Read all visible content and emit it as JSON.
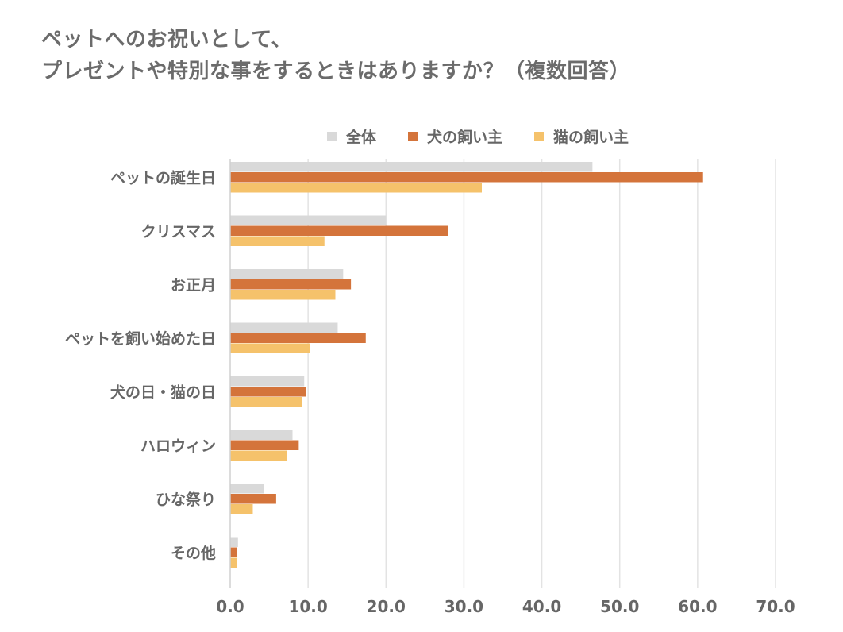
{
  "title_lines": [
    "ペットへのお祝いとして、",
    "プレゼントや特別な事をするときはありますか？（複数回答）"
  ],
  "colors": {
    "overall": "#d9d9d9",
    "dog": "#d4743b",
    "cat": "#f5c26b",
    "grid": "#e3e3e3",
    "axis": "#d0d0d0"
  },
  "chart_data": {
    "type": "bar",
    "orientation": "horizontal",
    "title": "ペットへのお祝いとして、プレゼントや特別な事をするときはありますか？（複数回答）",
    "categories": [
      "ペットの誕生日",
      "クリスマス",
      "お正月",
      "ペットを飼い始めた日",
      "犬の日・猫の日",
      "ハロウィン",
      "ひな祭り",
      "その他"
    ],
    "series": [
      {
        "name": "全体",
        "values": [
          46.5,
          20.0,
          14.5,
          13.8,
          9.5,
          8.0,
          4.3,
          1.0
        ]
      },
      {
        "name": "犬の飼い主",
        "values": [
          60.7,
          28.0,
          15.5,
          17.4,
          9.7,
          8.8,
          5.9,
          0.9
        ]
      },
      {
        "name": "猫の飼い主",
        "values": [
          32.3,
          12.1,
          13.5,
          10.2,
          9.2,
          7.3,
          2.9,
          0.9
        ]
      }
    ],
    "xlim": [
      0,
      70
    ],
    "xticks": [
      0,
      10,
      20,
      30,
      40,
      50,
      60,
      70
    ],
    "xtick_labels": [
      "0.0",
      "10.0",
      "20.0",
      "30.0",
      "40.0",
      "50.0",
      "60.0",
      "70.0"
    ],
    "xlabel": "",
    "ylabel": "",
    "grid": true,
    "legend_position": "top"
  }
}
